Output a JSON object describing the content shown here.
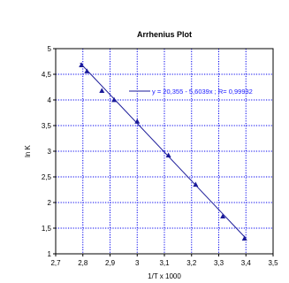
{
  "chart_data": {
    "type": "scatter",
    "title": "Arrhenius Plot",
    "xlabel": "1/T x 1000",
    "ylabel": "ln K",
    "xlim": [
      2.7,
      3.5
    ],
    "ylim": [
      1,
      5
    ],
    "x_ticks": [
      "2,7",
      "2,8",
      "2,9",
      "3",
      "3,1",
      "3,2",
      "3,3",
      "3,4",
      "3,5"
    ],
    "y_ticks": [
      "1",
      "1,5",
      "2",
      "2,5",
      "3",
      "3,5",
      "4",
      "4,5",
      "5"
    ],
    "grid": true,
    "legend_position": "top-right",
    "series": [
      {
        "name": "y = 20,355 - 5,6039x ; R= 0,99932",
        "x": [
          2.795,
          2.815,
          2.87,
          2.915,
          3.0,
          3.115,
          3.215,
          3.315,
          3.395
        ],
        "y": [
          4.68,
          4.56,
          4.18,
          4.0,
          3.58,
          2.92,
          2.35,
          1.73,
          1.3
        ]
      }
    ],
    "fit_line": {
      "intercept": 20.355,
      "slope": -5.6039,
      "x_range": [
        2.79,
        3.4
      ]
    },
    "colors": {
      "marker": "#1a1a99",
      "line": "#1a1a99",
      "grid": "#0000ee",
      "legend_text": "#1a1aff"
    }
  }
}
